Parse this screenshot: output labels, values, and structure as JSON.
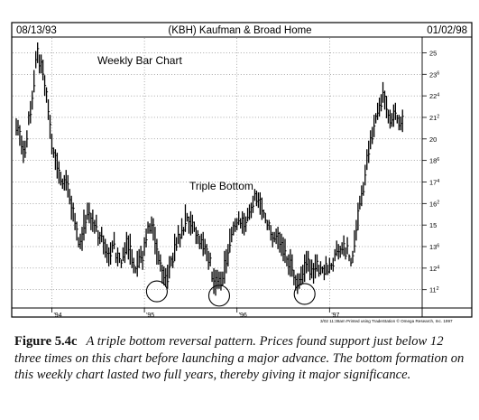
{
  "chart_data": {
    "type": "bar",
    "style": "ohlc-weekly-range-bars",
    "header": {
      "start_date": "08/13/93",
      "title": "(KBH) Kaufman & Broad Home",
      "end_date": "01/02/98"
    },
    "chart_label": "Weekly Bar Chart",
    "annotation": "Triple Bottom",
    "footer_note": "3/02 11:38am Printed using TradeStation © Omega Research, Inc. 1997",
    "x_tick_labels": [
      "'94",
      "'95",
      "'96",
      "'97"
    ],
    "y_axis_side": "right",
    "y_tick_labels": [
      "25",
      "23^6",
      "22^4",
      "21^2",
      "20",
      "18^6",
      "17^4",
      "16^2",
      "15",
      "13^6",
      "12^4",
      "11^2"
    ],
    "ylim": [
      10.5,
      25.6
    ],
    "anchors": {
      "x": [
        0,
        4,
        8,
        10,
        14,
        18,
        24,
        28,
        34,
        40,
        44,
        48,
        52,
        58,
        64,
        70,
        76,
        80,
        86,
        92,
        96,
        101,
        106,
        110,
        114,
        118,
        122,
        126,
        130,
        136,
        140,
        146,
        152,
        156,
        160,
        164,
        170,
        175,
        180,
        186,
        190,
        194,
        198,
        201,
        204,
        208,
        212,
        216,
        220,
        226
      ],
      "y": [
        20.5,
        20.5,
        18.8,
        20,
        23,
        25.2,
        23,
        19.8,
        18,
        17.5,
        16.1,
        14.5,
        15.8,
        13.8,
        13.2,
        12.8,
        13.5,
        12.2,
        13.6,
        11.5,
        13.8,
        15,
        14.3,
        13.7,
        12.3,
        11.3,
        12.7,
        14.8,
        15,
        16.8,
        15.2,
        14.4,
        13,
        13.7,
        12.2,
        11.8,
        13.2,
        12.2,
        12.6,
        13.5,
        13.8,
        13,
        15.3,
        18,
        20,
        21.8,
        22.6,
        21.3,
        21.6,
        21
      ]
    },
    "bar_ranges": [
      [
        20.2,
        21.2
      ],
      [
        20.2,
        21.1
      ],
      [
        19.6,
        20.8
      ],
      [
        19.1,
        20.2
      ],
      [
        18.6,
        19.9
      ],
      [
        18.9,
        19.9
      ],
      [
        19.5,
        20.5
      ],
      [
        20.8,
        21.6
      ],
      [
        20.9,
        22.2
      ],
      [
        21.7,
        22.8
      ],
      [
        22.7,
        24
      ],
      [
        24.1,
        25.1
      ],
      [
        24.4,
        25.6
      ],
      [
        23.8,
        24.9
      ],
      [
        23.8,
        24.9
      ],
      [
        23.4,
        24.6
      ],
      [
        22.5,
        23.7
      ],
      [
        22.1,
        23
      ],
      [
        21.1,
        22.3
      ],
      [
        20,
        21.4
      ],
      [
        19.1,
        20.3
      ],
      [
        18.9,
        19.5
      ],
      [
        18.2,
        19.4
      ],
      [
        17.7,
        19.2
      ],
      [
        17.4,
        18.7
      ],
      [
        17.3,
        18.1
      ],
      [
        17.1,
        17.7
      ],
      [
        17,
        17.9
      ],
      [
        17,
        18.2
      ],
      [
        16.6,
        17.9
      ],
      [
        16.2,
        17.1
      ],
      [
        15.3,
        16.7
      ],
      [
        15.2,
        16.3
      ],
      [
        14.7,
        15.7
      ],
      [
        14.1,
        15.2
      ],
      [
        13.7,
        14.3
      ],
      [
        13.6,
        14.5
      ],
      [
        13.5,
        14.9
      ],
      [
        14.1,
        15.9
      ],
      [
        14.5,
        15.6
      ],
      [
        15.3,
        16.3
      ],
      [
        15.1,
        16.3
      ],
      [
        14.7,
        15.7
      ],
      [
        14.6,
        15.9
      ],
      [
        14.5,
        15.3
      ],
      [
        14.6,
        15.6
      ],
      [
        13.8,
        14.7
      ],
      [
        13.9,
        14.6
      ],
      [
        14,
        14.9
      ],
      [
        13.3,
        14.4
      ],
      [
        13.1,
        14.2
      ],
      [
        12.8,
        13.9
      ],
      [
        12.6,
        13.7
      ],
      [
        12.7,
        14
      ],
      [
        13.4,
        14.1
      ],
      [
        13.6,
        14.6
      ],
      [
        12.8,
        13.4
      ],
      [
        12.6,
        13.7
      ],
      [
        12.8,
        13.4
      ],
      [
        12.5,
        13
      ],
      [
        12.9,
        13.7
      ],
      [
        12.8,
        14
      ],
      [
        13.3,
        14.6
      ],
      [
        13,
        14.4
      ],
      [
        12.7,
        14.5
      ],
      [
        12.5,
        13.6
      ],
      [
        12.2,
        13.1
      ],
      [
        12.2,
        12.6
      ],
      [
        12,
        13.5
      ],
      [
        12.5,
        13.6
      ],
      [
        12.8,
        13.8
      ],
      [
        12.4,
        13.5
      ],
      [
        13.2,
        14.3
      ],
      [
        13.7,
        14.8
      ],
      [
        14.5,
        15.2
      ],
      [
        14.5,
        15.1
      ],
      [
        14.5,
        15.5
      ],
      [
        14.1,
        15.4
      ],
      [
        13.3,
        14.9
      ],
      [
        12.7,
        14.2
      ],
      [
        12.7,
        13.5
      ],
      [
        12.3,
        13.3
      ],
      [
        11.6,
        12.7
      ],
      [
        11.5,
        12.6
      ],
      [
        11.4,
        12.5
      ],
      [
        11.3,
        12.7
      ],
      [
        11.9,
        13.2
      ],
      [
        12.6,
        13.2
      ],
      [
        12.5,
        13.4
      ],
      [
        12.9,
        14.5
      ],
      [
        13.5,
        14.3
      ],
      [
        13.9,
        15
      ],
      [
        13.7,
        14.5
      ],
      [
        14.2,
        15.4
      ],
      [
        14.4,
        14.9
      ],
      [
        14.6,
        16.2
      ],
      [
        15.2,
        15.7
      ],
      [
        14.5,
        15.5
      ],
      [
        14.4,
        15.8
      ],
      [
        14.5,
        15.6
      ],
      [
        14.6,
        15.2
      ],
      [
        13.9,
        14.9
      ],
      [
        13.9,
        14.7
      ],
      [
        13.6,
        14.4
      ],
      [
        13.6,
        14.5
      ],
      [
        13.2,
        14.6
      ],
      [
        13.3,
        14.2
      ],
      [
        12.9,
        13.9
      ],
      [
        12.4,
        13.5
      ],
      [
        12.6,
        13.4
      ],
      [
        11.7,
        12.3
      ],
      [
        11,
        12.5
      ],
      [
        10.9,
        12.4
      ],
      [
        11.3,
        12.4
      ],
      [
        11.3,
        12.3
      ],
      [
        11.2,
        12.3
      ],
      [
        11.5,
        12.3
      ],
      [
        11.6,
        13.5
      ],
      [
        12.2,
        13.6
      ],
      [
        12.6,
        13.9
      ],
      [
        13.4,
        14.8
      ],
      [
        14,
        14.9
      ],
      [
        14.4,
        15.2
      ],
      [
        14.6,
        15.4
      ],
      [
        14.7,
        15.4
      ],
      [
        15,
        15.8
      ],
      [
        14.8,
        15.4
      ],
      [
        14.5,
        15.8
      ],
      [
        14.4,
        15.7
      ],
      [
        14.6,
        15.5
      ],
      [
        15.2,
        16
      ],
      [
        15.3,
        16.2
      ],
      [
        15.4,
        16.3
      ],
      [
        15.7,
        16.7
      ],
      [
        16.4,
        17.1
      ],
      [
        16.1,
        17
      ],
      [
        16,
        16.9
      ],
      [
        15.6,
        16.9
      ],
      [
        15.3,
        16.6
      ],
      [
        15.4,
        15.9
      ],
      [
        15.1,
        15.7
      ],
      [
        14.7,
        15.3
      ],
      [
        14.7,
        15.3
      ],
      [
        14.1,
        15
      ],
      [
        13.7,
        14.6
      ],
      [
        14,
        14.6
      ],
      [
        13.9,
        14.8
      ],
      [
        13.6,
        14.9
      ],
      [
        13.4,
        14.6
      ],
      [
        13.2,
        14.5
      ],
      [
        12.9,
        14.3
      ],
      [
        12.8,
        14.2
      ],
      [
        12.6,
        13.2
      ],
      [
        12.1,
        13.3
      ],
      [
        12,
        13.6
      ],
      [
        12,
        13.3
      ],
      [
        11.5,
        12.4
      ],
      [
        11.2,
        12.1
      ],
      [
        11,
        12.2
      ],
      [
        11.3,
        12.2
      ],
      [
        11.5,
        12.6
      ],
      [
        11.6,
        12.7
      ],
      [
        11.7,
        13.3
      ],
      [
        12.2,
        13.5
      ],
      [
        12.3,
        13.5
      ],
      [
        11.8,
        13
      ],
      [
        11.9,
        13
      ],
      [
        11.6,
        12.8
      ],
      [
        11.9,
        13.3
      ],
      [
        12.3,
        13.3
      ],
      [
        12,
        12.7
      ],
      [
        12.1,
        12.9
      ],
      [
        12.2,
        12.6
      ],
      [
        11.8,
        12.7
      ],
      [
        12.1,
        13.2
      ],
      [
        12.1,
        12.7
      ],
      [
        12.2,
        13.1
      ],
      [
        12.4,
        12.8
      ],
      [
        12.3,
        13.1
      ],
      [
        12.9,
        13.6
      ],
      [
        13.2,
        14.1
      ],
      [
        13,
        13.9
      ],
      [
        13.1,
        13.8
      ],
      [
        13.3,
        14
      ],
      [
        13.2,
        14.4
      ],
      [
        13,
        13.7
      ],
      [
        13.3,
        14.3
      ],
      [
        12.9,
        13.3
      ],
      [
        12.6,
        13.1
      ],
      [
        12.8,
        13.5
      ],
      [
        13.4,
        14.7
      ],
      [
        14.1,
        15.3
      ],
      [
        14.7,
        16.3
      ],
      [
        15.9,
        16.7
      ],
      [
        16.1,
        17.3
      ],
      [
        16.7,
        17.5
      ],
      [
        17.3,
        18.5
      ],
      [
        18.2,
        19.4
      ],
      [
        18.6,
        19.9
      ],
      [
        19.4,
        20.5
      ],
      [
        19.7,
        20.7
      ],
      [
        20.1,
        21.4
      ],
      [
        20.9,
        21.5
      ],
      [
        21.1,
        22.1
      ],
      [
        21.3,
        22.4
      ],
      [
        21.6,
        22.6
      ],
      [
        22.1,
        23.3
      ],
      [
        21.7,
        22.8
      ],
      [
        21.2,
        22.5
      ],
      [
        20.9,
        21.7
      ],
      [
        20.6,
        21.7
      ],
      [
        20.7,
        21.5
      ],
      [
        20.7,
        22
      ],
      [
        21.1,
        22.1
      ],
      [
        20.9,
        21.4
      ],
      [
        20.5,
        21.4
      ],
      [
        20.5,
        21.3
      ],
      [
        20.4,
        21.7
      ]
    ],
    "highlighted_lows": [
      {
        "week": 79,
        "price": 11.15
      },
      {
        "week": 114,
        "price": 10.9
      },
      {
        "week": 162,
        "price": 11.0
      }
    ]
  },
  "caption": {
    "figure_label": "Figure 5.4c",
    "text": "A triple bottom reversal pattern. Prices found support just below 12 three times on this chart before launching a major advance. The bottom formation on this weekly chart lasted two full years, thereby giving it major significance."
  }
}
